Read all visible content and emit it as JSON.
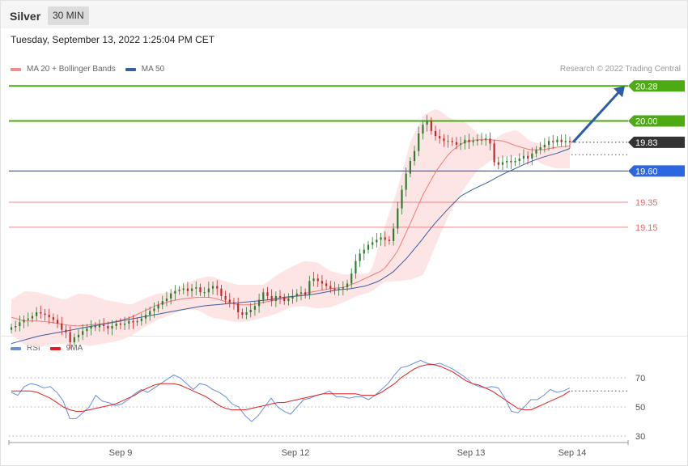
{
  "header": {
    "instrument": "Silver",
    "timeframe": "30 MIN",
    "timestamp": "Tuesday, September 13, 2022 1:25:04 PM CET",
    "copyright": "Research © 2022 Trading Central"
  },
  "main_legend": [
    {
      "label": "MA 20 + Bollinger Bands",
      "color": "#f48a8a"
    },
    {
      "label": "MA 50",
      "color": "#3a5f9e"
    }
  ],
  "rsi_legend": [
    {
      "label": "RSI",
      "color": "#6a8fdc"
    },
    {
      "label": "9MA",
      "color": "#e02020"
    }
  ],
  "colors": {
    "up": "#2e7d32",
    "down": "#c62828",
    "resistance": "#4caa12",
    "pivot": "#2c66e0",
    "support": "#e26a6a",
    "last": "#333333",
    "arrow": "#2b5ea7"
  },
  "chart_data": [
    {
      "type": "candlestick",
      "title": "Silver 30 MIN",
      "x_ticks": [
        "Sep 9",
        "Sep 12",
        "Sep 13",
        "Sep 14"
      ],
      "ylim": [
        18.25,
        20.45
      ],
      "close": [
        18.35,
        18.36,
        18.39,
        18.41,
        18.42,
        18.44,
        18.47,
        18.46,
        18.45,
        18.43,
        18.41,
        18.38,
        18.33,
        18.31,
        18.23,
        18.27,
        18.29,
        18.32,
        18.34,
        18.36,
        18.35,
        18.37,
        18.36,
        18.34,
        18.36,
        18.38,
        18.37,
        18.38,
        18.4,
        18.39,
        18.4,
        18.42,
        18.45,
        18.48,
        18.5,
        18.53,
        18.56,
        18.58,
        18.62,
        18.64,
        18.65,
        18.66,
        18.64,
        18.66,
        18.67,
        18.63,
        18.63,
        18.66,
        18.68,
        18.66,
        18.6,
        18.57,
        18.55,
        18.54,
        18.47,
        18.45,
        18.47,
        18.49,
        18.52,
        18.57,
        18.63,
        18.6,
        18.56,
        18.6,
        18.59,
        18.56,
        18.58,
        18.6,
        18.62,
        18.63,
        18.61,
        18.72,
        18.74,
        18.72,
        18.7,
        18.68,
        18.66,
        18.65,
        18.66,
        18.67,
        18.7,
        18.78,
        18.88,
        18.94,
        18.97,
        19.01,
        19.03,
        19.05,
        19.07,
        19.05,
        19.04,
        19.14,
        19.3,
        19.45,
        19.58,
        19.68,
        19.76,
        19.9,
        19.97,
        20.0,
        19.92,
        19.88,
        19.86,
        19.84,
        19.84,
        19.83,
        19.81,
        19.82,
        19.85,
        19.83,
        19.84,
        19.85,
        19.85,
        19.86,
        19.82,
        19.67,
        19.65,
        19.67,
        19.68,
        19.67,
        19.68,
        19.7,
        19.72,
        19.7,
        19.74,
        19.77,
        19.79,
        19.81,
        19.84,
        19.83,
        19.85,
        19.83,
        19.84,
        19.83
      ],
      "ma20_bands": {
        "upper": [
          18.57,
          18.64,
          18.63,
          18.6,
          18.57,
          18.62,
          18.61,
          18.57,
          18.55,
          18.53,
          18.58,
          18.62,
          18.63,
          18.69,
          18.74,
          18.76,
          18.72,
          18.69,
          18.69,
          18.69,
          18.77,
          18.83,
          18.88,
          18.87,
          18.8,
          18.77,
          18.78,
          18.78,
          19.13,
          19.44,
          19.83,
          20.05,
          20.1,
          20.02,
          20.0,
          19.91,
          19.83,
          19.9,
          19.93,
          19.84,
          19.81,
          19.79,
          19.79
        ],
        "middle": [
          18.43,
          18.4,
          18.4,
          18.39,
          18.37,
          18.36,
          18.37,
          18.38,
          18.4,
          18.43,
          18.48,
          18.53,
          18.56,
          18.58,
          18.59,
          18.59,
          18.56,
          18.53,
          18.53,
          18.55,
          18.57,
          18.59,
          18.62,
          18.64,
          18.66,
          18.67,
          18.71,
          18.76,
          18.81,
          18.95,
          19.18,
          19.42,
          19.61,
          19.75,
          19.83,
          19.85,
          19.85,
          19.84,
          19.8,
          19.77,
          19.77,
          19.79,
          19.8
        ],
        "lower": [
          18.29,
          18.21,
          18.19,
          18.21,
          18.22,
          18.22,
          18.2,
          18.22,
          18.24,
          18.28,
          18.35,
          18.41,
          18.45,
          18.49,
          18.49,
          18.43,
          18.41,
          18.39,
          18.4,
          18.43,
          18.46,
          18.51,
          18.52,
          18.5,
          18.51,
          18.55,
          18.6,
          18.63,
          18.71,
          18.72,
          18.73,
          18.77,
          19.03,
          19.27,
          19.45,
          19.6,
          19.68,
          19.71,
          19.72,
          19.72,
          19.65,
          19.62,
          19.62
        ]
      },
      "ma50": [
        18.22,
        18.25,
        18.28,
        18.3,
        18.32,
        18.34,
        18.36,
        18.38,
        18.4,
        18.42,
        18.44,
        18.46,
        18.48,
        18.5,
        18.52,
        18.53,
        18.54,
        18.55,
        18.56,
        18.57,
        18.59,
        18.6,
        18.61,
        18.63,
        18.65,
        18.66,
        18.68,
        18.72,
        18.79,
        18.9,
        19.03,
        19.17,
        19.29,
        19.4,
        19.46,
        19.51,
        19.57,
        19.62,
        19.67,
        19.71,
        19.74,
        19.78
      ],
      "levels": [
        {
          "value": 20.28,
          "label": "20.28",
          "kind": "resistance"
        },
        {
          "value": 20.0,
          "label": "20.00",
          "kind": "resistance"
        },
        {
          "value": 19.83,
          "label": "19.83",
          "kind": "last"
        },
        {
          "value": 19.6,
          "label": "19.60",
          "kind": "pivot"
        },
        {
          "value": 19.35,
          "label": "19.35",
          "kind": "support"
        },
        {
          "value": 19.15,
          "label": "19.15",
          "kind": "support"
        }
      ],
      "forecast_arrow": {
        "from": 19.83,
        "to": 20.28
      }
    },
    {
      "type": "line",
      "title": "RSI",
      "ylim": [
        20,
        85
      ],
      "y_ticks": [
        70,
        50,
        30
      ],
      "series": [
        {
          "name": "RSI",
          "values": [
            60,
            58,
            64,
            66,
            65,
            63,
            64,
            60,
            54,
            42,
            42,
            46,
            50,
            58,
            54,
            53,
            51,
            52,
            55,
            59,
            62,
            60,
            63,
            66,
            69,
            72,
            70,
            66,
            62,
            66,
            65,
            62,
            60,
            57,
            52,
            50,
            44,
            40,
            44,
            50,
            56,
            50,
            47,
            45,
            50,
            55,
            56,
            58,
            59,
            61,
            57,
            57,
            56,
            57,
            57,
            55,
            58,
            62,
            66,
            72,
            77,
            78,
            80,
            82,
            80,
            79,
            80,
            78,
            76,
            73,
            70,
            66,
            64,
            63,
            64,
            63,
            56,
            47,
            46,
            50,
            55,
            55,
            58,
            62,
            60,
            61,
            63
          ]
        },
        {
          "name": "9MA",
          "values": [
            61,
            61,
            61,
            61,
            60,
            58,
            56,
            53,
            50,
            48,
            47,
            47,
            48,
            49,
            50,
            51,
            52,
            54,
            56,
            58,
            61,
            63,
            65,
            66,
            66,
            66,
            65,
            63,
            61,
            59,
            57,
            54,
            51,
            49,
            48,
            48,
            48,
            49,
            50,
            51,
            52,
            53,
            53,
            54,
            55,
            56,
            57,
            58,
            59,
            59,
            59,
            59,
            59,
            59,
            58,
            58,
            58,
            60,
            63,
            66,
            70,
            73,
            76,
            78,
            79,
            79,
            78,
            76,
            74,
            71,
            68,
            66,
            65,
            63,
            61,
            58,
            55,
            52,
            49,
            48,
            48,
            50,
            52,
            54,
            56,
            58,
            61
          ]
        }
      ]
    }
  ]
}
